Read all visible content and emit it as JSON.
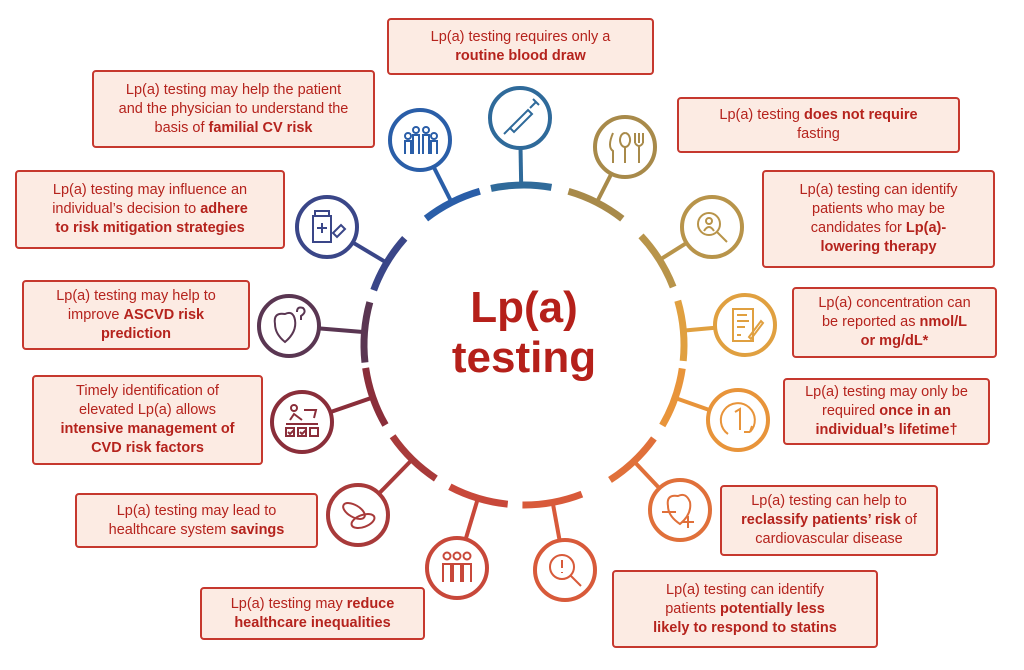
{
  "center": {
    "line1": "Lp(a)",
    "line2": "testing"
  },
  "colors": {
    "box_fill": "#fcebe3",
    "box_border": "#c6382e",
    "text": "#b5231d"
  },
  "statements": [
    {
      "id": "blood-draw",
      "icon": "syringe-icon",
      "color": "#2f6a9a",
      "lines": [
        [
          {
            "t": "Lp(a) testing requires only a",
            "b": false
          }
        ],
        [
          {
            "t": "routine blood draw",
            "b": true
          }
        ]
      ]
    },
    {
      "id": "fasting",
      "icon": "cutlery-icon",
      "color": "#a88a4a",
      "lines": [
        [
          {
            "t": "Lp(a) testing ",
            "b": false
          },
          {
            "t": "does not require",
            "b": true
          }
        ],
        [
          {
            "t": "fasting",
            "b": false
          }
        ]
      ]
    },
    {
      "id": "candidates",
      "icon": "magnifier-person-icon",
      "color": "#b8944a",
      "lines": [
        [
          {
            "t": "Lp(a) testing can identify",
            "b": false
          }
        ],
        [
          {
            "t": "patients who may be",
            "b": false
          }
        ],
        [
          {
            "t": "candidates for ",
            "b": false
          },
          {
            "t": "Lp(a)-",
            "b": true
          }
        ],
        [
          {
            "t": "lowering therapy",
            "b": true
          }
        ]
      ]
    },
    {
      "id": "units",
      "icon": "document-pen-icon",
      "color": "#e0a040",
      "lines": [
        [
          {
            "t": "Lp(a) concentration can",
            "b": false
          }
        ],
        [
          {
            "t": "be reported as ",
            "b": false
          },
          {
            "t": "nmol/L",
            "b": true
          }
        ],
        [
          {
            "t": "or mg/dL*",
            "b": true
          }
        ]
      ]
    },
    {
      "id": "once",
      "icon": "once-cycle-icon",
      "color": "#e8943a",
      "lines": [
        [
          {
            "t": "Lp(a) testing may only be",
            "b": false
          }
        ],
        [
          {
            "t": "required ",
            "b": false
          },
          {
            "t": "once in an",
            "b": true
          }
        ],
        [
          {
            "t": "individual’s lifetime†",
            "b": true
          }
        ]
      ]
    },
    {
      "id": "reclassify",
      "icon": "heart-plus-icon",
      "color": "#e0703a",
      "lines": [
        [
          {
            "t": "Lp(a) testing can help to",
            "b": false
          }
        ],
        [
          {
            "t": "reclassify patients’ risk",
            "b": true
          },
          {
            "t": " of",
            "b": false
          }
        ],
        [
          {
            "t": "cardiovascular disease",
            "b": false
          }
        ]
      ]
    },
    {
      "id": "statins",
      "icon": "magnifier-alert-icon",
      "color": "#d85a3a",
      "lines": [
        [
          {
            "t": "Lp(a) testing can identify",
            "b": false
          }
        ],
        [
          {
            "t": "patients ",
            "b": false
          },
          {
            "t": "potentially less",
            "b": true
          }
        ],
        [
          {
            "t": "likely to respond to statins",
            "b": true
          }
        ]
      ]
    },
    {
      "id": "inequalities",
      "icon": "people-icon",
      "color": "#c8483a",
      "lines": [
        [
          {
            "t": "Lp(a) testing may ",
            "b": false
          },
          {
            "t": "reduce",
            "b": true
          }
        ],
        [
          {
            "t": "healthcare inequalities",
            "b": true
          }
        ]
      ]
    },
    {
      "id": "savings",
      "icon": "coins-icon",
      "color": "#a83a3a",
      "lines": [
        [
          {
            "t": "Lp(a) testing may lead to",
            "b": false
          }
        ],
        [
          {
            "t": "healthcare system ",
            "b": false
          },
          {
            "t": "savings",
            "b": true
          }
        ]
      ]
    },
    {
      "id": "management",
      "icon": "checklist-icon",
      "color": "#8a2e3a",
      "lines": [
        [
          {
            "t": "Timely identification of",
            "b": false
          }
        ],
        [
          {
            "t": "elevated Lp(a) allows",
            "b": false
          }
        ],
        [
          {
            "t": "intensive management of",
            "b": true
          }
        ],
        [
          {
            "t": "CVD risk factors",
            "b": true
          }
        ]
      ]
    },
    {
      "id": "ascvd",
      "icon": "heart-question-icon",
      "color": "#5a3652",
      "lines": [
        [
          {
            "t": "Lp(a) testing may help to",
            "b": false
          }
        ],
        [
          {
            "t": "improve ",
            "b": false
          },
          {
            "t": "ASCVD risk",
            "b": true
          }
        ],
        [
          {
            "t": "prediction",
            "b": true
          }
        ]
      ]
    },
    {
      "id": "adhere",
      "icon": "pill-bottle-icon",
      "color": "#3a4688",
      "lines": [
        [
          {
            "t": "Lp(a) testing may influence an",
            "b": false
          }
        ],
        [
          {
            "t": "individual’s decision to ",
            "b": false
          },
          {
            "t": "adhere",
            "b": true
          }
        ],
        [
          {
            "t": "to risk mitigation strategies",
            "b": true
          }
        ]
      ]
    },
    {
      "id": "familial",
      "icon": "family-icon",
      "color": "#2a5ea8",
      "lines": [
        [
          {
            "t": "Lp(a) testing may help the patient",
            "b": false
          }
        ],
        [
          {
            "t": "and the physician to understand the",
            "b": false
          }
        ],
        [
          {
            "t": "basis of ",
            "b": false
          },
          {
            "t": "familial CV risk",
            "b": true
          }
        ]
      ]
    }
  ]
}
